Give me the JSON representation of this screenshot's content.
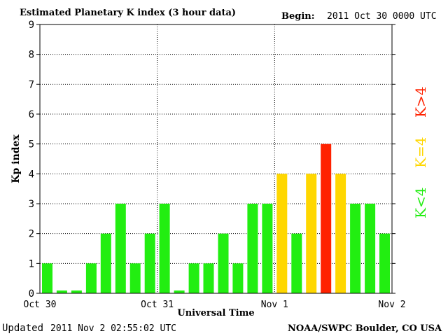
{
  "header": {
    "title": "Estimated Planetary K index (3 hour data)",
    "begin_label": "Begin:",
    "begin_value": "2011 Oct 30 0000 UTC"
  },
  "footer": {
    "updated_label": "Updated",
    "updated_value": "2011 Nov  2 02:55:02 UTC",
    "source": "NOAA/SWPC Boulder, CO USA"
  },
  "legend": {
    "low": "K<4",
    "mid": "K=4",
    "high": "K>4"
  },
  "colors": {
    "low": "#22ee11",
    "mid": "#ffd700",
    "high": "#ff2200",
    "grid": "#000000",
    "frame": "#000000"
  },
  "chart_data": {
    "type": "bar",
    "title": "Estimated Planetary K index (3 hour data)",
    "xlabel": "Universal Time",
    "ylabel": "Kp index",
    "ylim": [
      0,
      9
    ],
    "yticks": [
      "0",
      "1",
      "2",
      "3",
      "4",
      "5",
      "6",
      "7",
      "8",
      "9"
    ],
    "xticks": [
      "Oct 30",
      "Oct 31",
      "Nov 1",
      "Nov 2"
    ],
    "grid": true,
    "interval_hours": 3,
    "values": [
      1,
      0,
      0,
      1,
      2,
      3,
      1,
      2,
      3,
      0,
      1,
      1,
      2,
      1,
      3,
      3,
      4,
      2,
      4,
      5,
      4,
      3,
      3,
      2
    ]
  }
}
